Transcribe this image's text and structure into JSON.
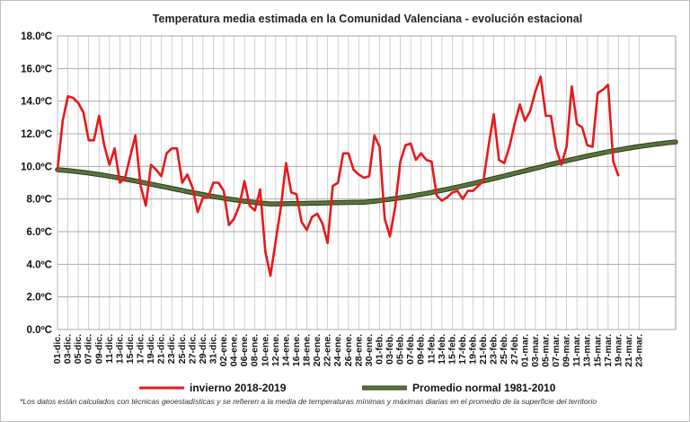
{
  "chart_data": {
    "type": "line",
    "title": "Temperatura media estimada en la Comunidad Valenciana - evolución estacional",
    "footnote": "*Los datos están calculados con técnicas geoestadísticas y se refieren a la media de temperaturas mínimas y máximas diarias en el promedio de la superficie del territorio",
    "ylim": [
      0,
      18
    ],
    "yticks": [
      "0.0ºC",
      "2.0ºC",
      "4.0ºC",
      "6.0ºC",
      "8.0ºC",
      "10.0ºC",
      "12.0ºC",
      "14.0ºC",
      "16.0ºC",
      "18.0ºC"
    ],
    "grid": true,
    "legend_position": "bottom",
    "colors": {
      "winter": "#e8181b",
      "normal": "#58753a",
      "normal_edge": "#2b3a1c"
    },
    "x_tick_labels": [
      "01-dic.",
      "03-dic.",
      "05-dic.",
      "07-dic.",
      "09-dic.",
      "11-dic.",
      "13-dic.",
      "15-dic.",
      "17-dic.",
      "19-dic.",
      "21-dic.",
      "23-dic.",
      "25-dic.",
      "27-dic.",
      "29-dic.",
      "31-dic.",
      "02-ene.",
      "04-ene.",
      "06-ene.",
      "08-ene.",
      "10-ene.",
      "12-ene.",
      "14-ene.",
      "16-ene.",
      "18-ene.",
      "20-ene.",
      "22-ene.",
      "24-ene.",
      "26-ene.",
      "28-ene.",
      "30-ene.",
      "01-feb.",
      "03-feb.",
      "05-feb.",
      "07-feb.",
      "09-feb.",
      "11-feb.",
      "13-feb.",
      "15-feb.",
      "17-feb.",
      "19-feb.",
      "21-feb.",
      "23-feb.",
      "25-feb.",
      "27-feb.",
      "01-mar.",
      "03-mar.",
      "05-mar.",
      "07-mar.",
      "09-mar.",
      "11-mar.",
      "13-mar.",
      "15-mar.",
      "17-mar.",
      "19-mar.",
      "21-mar.",
      "23-mar."
    ],
    "series": [
      {
        "name": "invierno 2018-2019",
        "values": [
          9.8,
          12.8,
          14.3,
          14.2,
          13.9,
          13.3,
          11.6,
          11.6,
          13.1,
          11.3,
          10.1,
          11.1,
          9.0,
          9.3,
          10.6,
          11.9,
          8.8,
          7.6,
          10.1,
          9.8,
          9.4,
          10.8,
          11.1,
          11.1,
          9.0,
          9.5,
          8.7,
          7.2,
          8.1,
          8.1,
          9.0,
          9.0,
          8.5,
          6.4,
          6.8,
          7.6,
          9.1,
          7.6,
          7.3,
          8.6,
          4.8,
          3.3,
          5.4,
          7.5,
          10.2,
          8.4,
          8.3,
          6.6,
          6.1,
          6.9,
          7.1,
          6.5,
          5.3,
          8.8,
          9.0,
          10.8,
          10.8,
          9.8,
          9.5,
          9.3,
          9.4,
          11.9,
          11.2,
          6.8,
          5.7,
          7.5,
          10.3,
          11.3,
          11.4,
          10.4,
          10.8,
          10.4,
          10.3,
          8.2,
          7.9,
          8.1,
          8.4,
          8.5,
          8.0,
          8.5,
          8.5,
          8.8,
          9.1,
          11.3,
          13.2,
          10.4,
          10.2,
          11.2,
          12.6,
          13.8,
          12.8,
          13.4,
          14.6,
          15.5,
          13.1,
          13.1,
          11.1,
          10.1,
          11.2,
          14.9,
          12.6,
          12.4,
          11.3,
          11.2,
          14.5,
          14.7,
          15.0,
          10.3,
          9.4
        ]
      },
      {
        "name": "Promedio normal 1981-2010",
        "values": [
          9.8,
          7.7,
          7.8,
          11.5
        ],
        "x_index": [
          0,
          41,
          59,
          119
        ]
      }
    ],
    "legend": [
      "invierno 2018-2019",
      "Promedio normal 1981-2010"
    ]
  }
}
